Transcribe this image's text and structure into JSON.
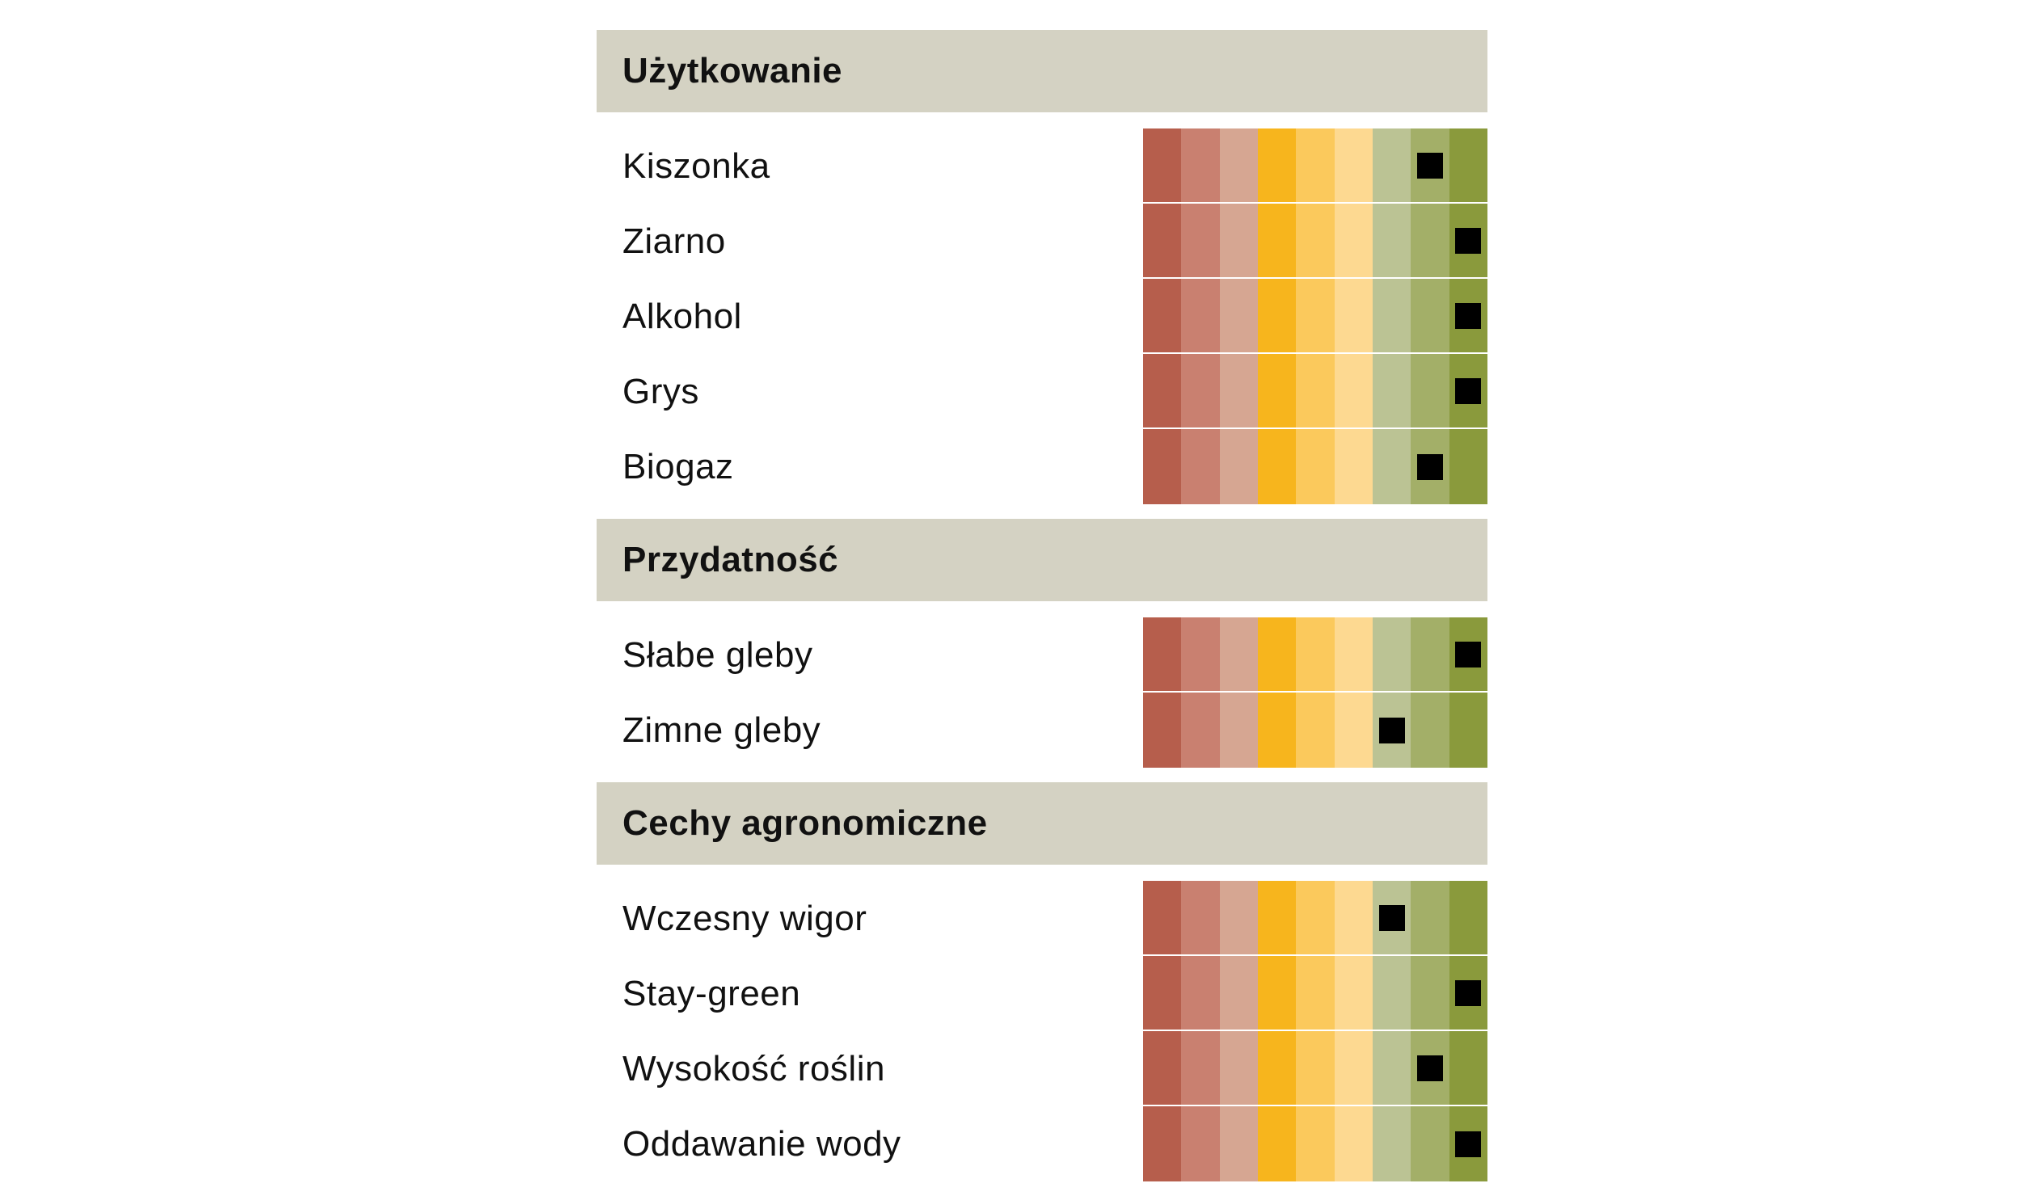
{
  "chart_data": {
    "type": "table",
    "scale_levels": 9,
    "scale_colors": [
      "#b65e4c",
      "#c98070",
      "#d6a692",
      "#f7b51d",
      "#fbc95c",
      "#fdd991",
      "#bbc394",
      "#a3af68",
      "#8a9a3c"
    ],
    "marker_color": "#000000",
    "header_color": "#d4d2c3",
    "sections": [
      {
        "title": "Użytkowanie",
        "rows": [
          {
            "label": "Kiszonka",
            "value": 8
          },
          {
            "label": "Ziarno",
            "value": 9
          },
          {
            "label": "Alkohol",
            "value": 9
          },
          {
            "label": "Grys",
            "value": 9
          },
          {
            "label": "Biogaz",
            "value": 8
          }
        ]
      },
      {
        "title": "Przydatność",
        "rows": [
          {
            "label": "Słabe gleby",
            "value": 9
          },
          {
            "label": "Zimne gleby",
            "value": 7
          }
        ]
      },
      {
        "title": "Cechy agronomiczne",
        "rows": [
          {
            "label": "Wczesny wigor",
            "value": 7
          },
          {
            "label": "Stay-green",
            "value": 9
          },
          {
            "label": "Wysokość roślin",
            "value": 8
          },
          {
            "label": "Oddawanie wody",
            "value": 9
          }
        ]
      }
    ]
  }
}
